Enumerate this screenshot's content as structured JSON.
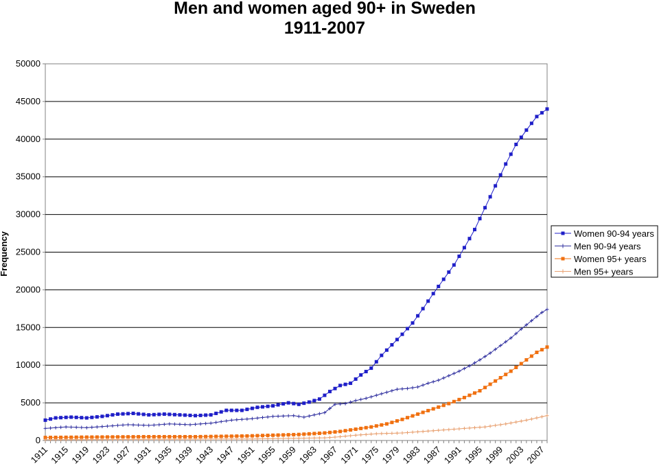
{
  "chart_data": {
    "type": "line",
    "title": "Men and women aged 90+ in Sweden",
    "subtitle": "1911-2007",
    "xlabel": "",
    "ylabel": "Frequency",
    "ylim": [
      0,
      50000
    ],
    "yticks": [
      0,
      5000,
      10000,
      15000,
      20000,
      25000,
      30000,
      35000,
      40000,
      45000,
      50000
    ],
    "xlim": [
      1911,
      2008
    ],
    "xticks": [
      1911,
      1915,
      1919,
      1923,
      1927,
      1931,
      1935,
      1939,
      1943,
      1947,
      1951,
      1955,
      1959,
      1963,
      1967,
      1971,
      1975,
      1979,
      1983,
      1987,
      1991,
      1995,
      1999,
      2003,
      2007
    ],
    "grid": "horizontal",
    "legend_position": "right",
    "series": [
      {
        "name": "Women 90-94 years",
        "color": "#1f1fc8",
        "marker": "square",
        "anchors": [
          [
            1911,
            2700
          ],
          [
            1913,
            3000
          ],
          [
            1916,
            3100
          ],
          [
            1919,
            3000
          ],
          [
            1922,
            3200
          ],
          [
            1925,
            3500
          ],
          [
            1928,
            3600
          ],
          [
            1931,
            3400
          ],
          [
            1934,
            3500
          ],
          [
            1937,
            3400
          ],
          [
            1940,
            3300
          ],
          [
            1943,
            3400
          ],
          [
            1946,
            4000
          ],
          [
            1949,
            4000
          ],
          [
            1952,
            4400
          ],
          [
            1955,
            4600
          ],
          [
            1958,
            5000
          ],
          [
            1960,
            4800
          ],
          [
            1962,
            5100
          ],
          [
            1964,
            5500
          ],
          [
            1966,
            6500
          ],
          [
            1968,
            7300
          ],
          [
            1970,
            7600
          ],
          [
            1972,
            8700
          ],
          [
            1974,
            9600
          ],
          [
            1976,
            11300
          ],
          [
            1978,
            12700
          ],
          [
            1980,
            14100
          ],
          [
            1982,
            15600
          ],
          [
            1984,
            17500
          ],
          [
            1986,
            19500
          ],
          [
            1988,
            21400
          ],
          [
            1990,
            23300
          ],
          [
            1992,
            25600
          ],
          [
            1994,
            28000
          ],
          [
            1996,
            30900
          ],
          [
            1998,
            33800
          ],
          [
            2000,
            36700
          ],
          [
            2002,
            39300
          ],
          [
            2004,
            41200
          ],
          [
            2006,
            43000
          ],
          [
            2008,
            44000
          ]
        ]
      },
      {
        "name": "Men 90-94 years",
        "color": "#3232a0",
        "marker": "plus",
        "anchors": [
          [
            1911,
            1600
          ],
          [
            1915,
            1800
          ],
          [
            1919,
            1700
          ],
          [
            1923,
            1900
          ],
          [
            1927,
            2100
          ],
          [
            1931,
            2000
          ],
          [
            1935,
            2200
          ],
          [
            1939,
            2100
          ],
          [
            1943,
            2300
          ],
          [
            1947,
            2700
          ],
          [
            1951,
            2900
          ],
          [
            1955,
            3200
          ],
          [
            1959,
            3300
          ],
          [
            1961,
            3100
          ],
          [
            1963,
            3400
          ],
          [
            1965,
            3700
          ],
          [
            1967,
            4800
          ],
          [
            1969,
            4900
          ],
          [
            1971,
            5300
          ],
          [
            1973,
            5600
          ],
          [
            1975,
            6000
          ],
          [
            1977,
            6400
          ],
          [
            1979,
            6800
          ],
          [
            1981,
            6900
          ],
          [
            1983,
            7100
          ],
          [
            1985,
            7600
          ],
          [
            1987,
            8000
          ],
          [
            1989,
            8600
          ],
          [
            1991,
            9200
          ],
          [
            1993,
            9900
          ],
          [
            1995,
            10700
          ],
          [
            1997,
            11600
          ],
          [
            1999,
            12600
          ],
          [
            2001,
            13600
          ],
          [
            2003,
            14800
          ],
          [
            2005,
            15900
          ],
          [
            2007,
            17000
          ],
          [
            2008,
            17400
          ]
        ]
      },
      {
        "name": "Women 95+ years",
        "color": "#f07010",
        "marker": "square",
        "anchors": [
          [
            1911,
            400
          ],
          [
            1920,
            450
          ],
          [
            1930,
            500
          ],
          [
            1940,
            500
          ],
          [
            1950,
            600
          ],
          [
            1955,
            700
          ],
          [
            1960,
            800
          ],
          [
            1965,
            1000
          ],
          [
            1968,
            1200
          ],
          [
            1971,
            1500
          ],
          [
            1974,
            1800
          ],
          [
            1977,
            2200
          ],
          [
            1980,
            2800
          ],
          [
            1983,
            3500
          ],
          [
            1986,
            4200
          ],
          [
            1989,
            4900
          ],
          [
            1992,
            5700
          ],
          [
            1995,
            6600
          ],
          [
            1998,
            7900
          ],
          [
            2001,
            9200
          ],
          [
            2004,
            10700
          ],
          [
            2006,
            11700
          ],
          [
            2008,
            12400
          ]
        ]
      },
      {
        "name": "Men 95+ years",
        "color": "#e8a070",
        "marker": "plus",
        "anchors": [
          [
            1911,
            100
          ],
          [
            1930,
            150
          ],
          [
            1950,
            200
          ],
          [
            1960,
            300
          ],
          [
            1965,
            350
          ],
          [
            1968,
            500
          ],
          [
            1971,
            700
          ],
          [
            1975,
            900
          ],
          [
            1980,
            1000
          ],
          [
            1984,
            1200
          ],
          [
            1988,
            1400
          ],
          [
            1992,
            1600
          ],
          [
            1996,
            1800
          ],
          [
            2000,
            2200
          ],
          [
            2004,
            2700
          ],
          [
            2008,
            3300
          ]
        ]
      }
    ]
  }
}
